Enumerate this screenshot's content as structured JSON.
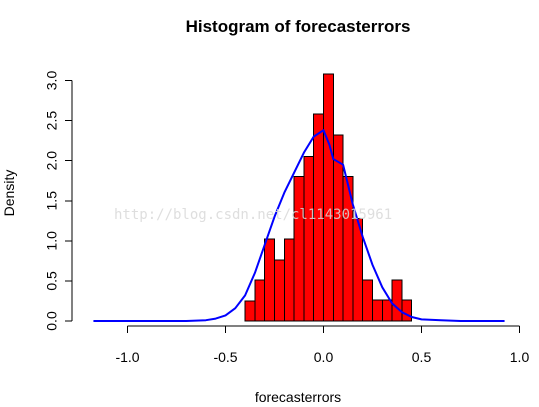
{
  "chart_data": {
    "type": "histogram",
    "title": "Histogram of forecasterrors",
    "xlabel": "forecasterrors",
    "ylabel": "Density",
    "xlim": [
      -1.2,
      0.95
    ],
    "ylim": [
      0,
      3.1
    ],
    "x_ticks": [
      -1.0,
      -0.5,
      0.0,
      0.5,
      1.0
    ],
    "x_tick_labels": [
      "-1.0",
      "-0.5",
      "0.0",
      "0.5",
      "1.0"
    ],
    "y_ticks": [
      0.0,
      0.5,
      1.0,
      1.5,
      2.0,
      2.5,
      3.0
    ],
    "y_tick_labels": [
      "0.0",
      "0.5",
      "1.0",
      "1.5",
      "2.0",
      "2.5",
      "3.0"
    ],
    "bars": {
      "bin_edges": [
        -0.4,
        -0.35,
        -0.3,
        -0.25,
        -0.2,
        -0.15,
        -0.1,
        -0.05,
        0.0,
        0.05,
        0.1,
        0.15,
        0.2,
        0.25,
        0.3,
        0.35,
        0.4,
        0.45
      ],
      "densities": [
        0.25,
        0.51,
        1.02,
        0.76,
        1.02,
        1.8,
        2.05,
        2.58,
        3.08,
        2.32,
        1.8,
        1.28,
        0.51,
        0.26,
        0.26,
        0.51,
        0.26
      ],
      "fill": "#ff0000",
      "border": "#000000"
    },
    "series": [
      {
        "type": "line",
        "color": "#0000ff",
        "x": [
          -1.17,
          -0.9,
          -0.7,
          -0.6,
          -0.55,
          -0.5,
          -0.45,
          -0.4,
          -0.35,
          -0.3,
          -0.25,
          -0.2,
          -0.15,
          -0.1,
          -0.05,
          0.0,
          0.03,
          0.05,
          0.1,
          0.12,
          0.15,
          0.2,
          0.25,
          0.3,
          0.35,
          0.4,
          0.45,
          0.5,
          0.6,
          0.7,
          0.8,
          0.92
        ],
        "y": [
          0.0,
          0.0,
          0.0,
          0.01,
          0.03,
          0.07,
          0.16,
          0.32,
          0.6,
          0.95,
          1.3,
          1.6,
          1.85,
          2.1,
          2.3,
          2.38,
          2.2,
          2.02,
          1.95,
          1.75,
          1.45,
          1.05,
          0.7,
          0.42,
          0.22,
          0.11,
          0.05,
          0.02,
          0.01,
          0.0,
          0.0,
          0.0
        ]
      }
    ],
    "grid": false
  },
  "watermark": {
    "text": "http://blog.csdn.net/cl1143015961"
  }
}
